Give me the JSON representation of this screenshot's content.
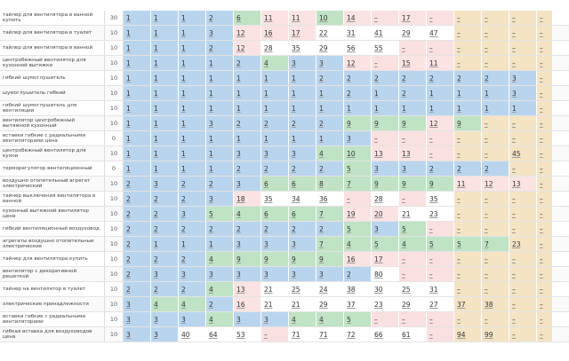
{
  "table": {
    "rows": [
      {
        "query": "тайлер для вентилятора в ванной купить",
        "count": 30,
        "positions": [
          "1",
          "1",
          "1",
          "2",
          "6",
          "11",
          "11",
          "10",
          "14",
          "–",
          "17",
          "–",
          "–",
          "–",
          "–",
          "–"
        ]
      },
      {
        "query": "тайлер для вентилятора в туалет",
        "count": 10,
        "positions": [
          "1",
          "1",
          "1",
          "3",
          "12",
          "16",
          "17",
          "22",
          "31",
          "41",
          "29",
          "47",
          "–",
          "–",
          "–",
          "–"
        ]
      },
      {
        "query": "тайлер для вентилятора в ванной",
        "count": 10,
        "positions": [
          "1",
          "1",
          "1",
          "2",
          "12",
          "28",
          "35",
          "29",
          "56",
          "55",
          "–",
          "–",
          "–",
          "–",
          "–",
          "–"
        ]
      },
      {
        "query": "центробежный вентилятор для кухонной вытяжки",
        "count": 10,
        "positions": [
          "1",
          "1",
          "1",
          "1",
          "2",
          "4",
          "3",
          "3",
          "12",
          "–",
          "15",
          "11",
          "–",
          "–",
          "–",
          "–"
        ]
      },
      {
        "query": "гибкий шумоглушитель",
        "count": 10,
        "positions": [
          "1",
          "1",
          "1",
          "1",
          "1",
          "1",
          "1",
          "2",
          "2",
          "2",
          "2",
          "2",
          "2",
          "2",
          "3",
          "–"
        ]
      },
      {
        "query": "шумоглушитель гибкий",
        "count": 10,
        "positions": [
          "1",
          "1",
          "1",
          "1",
          "1",
          "1",
          "1",
          "1",
          "2",
          "1",
          "2",
          "1",
          "1",
          "1",
          "3",
          "–"
        ]
      },
      {
        "query": "гибкий шумоглушитель для вентиляции",
        "count": 10,
        "positions": [
          "1",
          "1",
          "1",
          "1",
          "1",
          "1",
          "1",
          "1",
          "1",
          "1",
          "1",
          "1",
          "1",
          "1",
          "1",
          "–"
        ]
      },
      {
        "query": "вентилятор центробежный вытяжной кухонный",
        "count": 10,
        "positions": [
          "1",
          "1",
          "1",
          "3",
          "2",
          "2",
          "2",
          "2",
          "9",
          "9",
          "9",
          "12",
          "9",
          "–",
          "–",
          "–"
        ]
      },
      {
        "query": "вставки гибкие с радиальными вентиляторами цена",
        "count": 0,
        "positions": [
          "1",
          "1",
          "1",
          "1",
          "1",
          "1",
          "1",
          "1",
          "3",
          "–",
          "–",
          "–",
          "–",
          "–",
          "–",
          "–"
        ]
      },
      {
        "query": "центробежный вентилятор для кухни",
        "count": 10,
        "positions": [
          "1",
          "1",
          "1",
          "1",
          "3",
          "3",
          "3",
          "4",
          "10",
          "13",
          "13",
          "–",
          "–",
          "–",
          "45",
          "–"
        ]
      },
      {
        "query": "терморегулятор вентиляционный",
        "count": 0,
        "positions": [
          "1",
          "1",
          "1",
          "1",
          "2",
          "2",
          "2",
          "2",
          "5",
          "3",
          "3",
          "2",
          "2",
          "2",
          "–",
          "–"
        ]
      },
      {
        "query": "воздушно отопительный агрегат электрический",
        "count": 10,
        "positions": [
          "2",
          "3",
          "2",
          "2",
          "3",
          "6",
          "6",
          "8",
          "7",
          "9",
          "9",
          "9",
          "11",
          "12",
          "13",
          "–"
        ]
      },
      {
        "query": "тайнер выключения вентилятора в ванной",
        "count": 10,
        "positions": [
          "2",
          "2",
          "2",
          "3",
          "18",
          "35",
          "34",
          "36",
          "–",
          "28",
          "–",
          "35",
          "–",
          "–",
          "–",
          "–"
        ]
      },
      {
        "query": "кухонный вытяжной вентилятор цена",
        "count": 10,
        "positions": [
          "2",
          "2",
          "3",
          "5",
          "4",
          "6",
          "6",
          "7",
          "19",
          "20",
          "21",
          "23",
          "–",
          "–",
          "–",
          "–"
        ]
      },
      {
        "query": "гибкий вентиляционный воздуховод",
        "count": 10,
        "positions": [
          "2",
          "2",
          "2",
          "2",
          "2",
          "2",
          "2",
          "2",
          "5",
          "3",
          "5",
          "–",
          "–",
          "–",
          "–",
          "–"
        ]
      },
      {
        "query": "агрегаты воздушно отопительные электрические",
        "count": 10,
        "positions": [
          "2",
          "1",
          "1",
          "1",
          "3",
          "3",
          "3",
          "7",
          "4",
          "5",
          "4",
          "5",
          "5",
          "7",
          "23",
          "–"
        ]
      },
      {
        "query": "тайнер для вентилятора купить",
        "count": 10,
        "positions": [
          "2",
          "2",
          "2",
          "4",
          "9",
          "9",
          "9",
          "9",
          "16",
          "17",
          "–",
          "–",
          "–",
          "–",
          "–",
          "–"
        ]
      },
      {
        "query": "вентилятор с декоративной решеткой",
        "count": 10,
        "positions": [
          "2",
          "3",
          "3",
          "3",
          "3",
          "3",
          "3",
          "3",
          "2",
          "80",
          "–",
          "–",
          "–",
          "–",
          "–",
          "–"
        ]
      },
      {
        "query": "тайнер на вентилятор в туалет",
        "count": 10,
        "positions": [
          "2",
          "2",
          "2",
          "4",
          "13",
          "21",
          "25",
          "24",
          "38",
          "30",
          "25",
          "31",
          "–",
          "–",
          "–",
          "–"
        ]
      },
      {
        "query": "электрические принадлежности",
        "count": 10,
        "positions": [
          "3",
          "4",
          "4",
          "2",
          "16",
          "21",
          "21",
          "29",
          "37",
          "23",
          "29",
          "27",
          "37",
          "38",
          "–",
          "–"
        ]
      },
      {
        "query": "вставки гибкие с радиальными вентиляторами",
        "count": 10,
        "positions": [
          "3",
          "3",
          "3",
          "4",
          "3",
          "3",
          "4",
          "4",
          "5",
          "–",
          "–",
          "–",
          "–",
          "–",
          "–",
          "–"
        ]
      },
      {
        "query": "гибкая вставка для воздуховодов цена",
        "count": 10,
        "positions": [
          "3",
          "3",
          "40",
          "64",
          "53",
          "–",
          "71",
          "71",
          "72",
          "66",
          "61",
          "–",
          "94",
          "99",
          "–",
          "–"
        ]
      }
    ]
  }
}
